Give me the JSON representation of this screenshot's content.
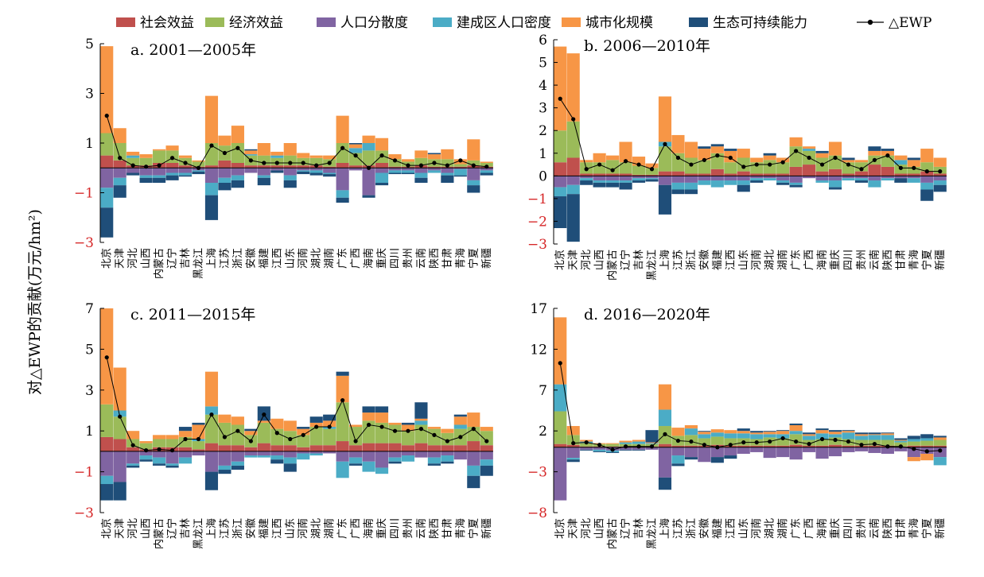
{
  "ylabel": "对△EWP的贡献(万元/hm²)",
  "legend": [
    {
      "key": "social",
      "name": "社会效益",
      "color": "#c0504d"
    },
    {
      "key": "economic",
      "name": "经济效益",
      "color": "#9bbb59"
    },
    {
      "key": "dispersion",
      "name": "人口分散度",
      "color": "#8064a2"
    },
    {
      "key": "density",
      "name": "建成区人口密度",
      "color": "#4bacc6"
    },
    {
      "key": "urbanization",
      "name": "城市化规模",
      "color": "#f79646"
    },
    {
      "key": "ecological",
      "name": "生态可持续能力",
      "color": "#1f4e79"
    },
    {
      "key": "ewp",
      "name": "△EWP",
      "color": "#000000"
    }
  ],
  "provinces": [
    "北京",
    "天津",
    "河北",
    "山西",
    "内蒙古",
    "辽宁",
    "吉林",
    "黑龙江",
    "上海",
    "江苏",
    "浙江",
    "安徽",
    "福建",
    "江西",
    "山东",
    "河南",
    "湖北",
    "湖南",
    "广东",
    "广西",
    "海南",
    "重庆",
    "四川",
    "贵州",
    "云南",
    "陕西",
    "甘肃",
    "青海",
    "宁夏",
    "新疆"
  ],
  "chart_data": [
    {
      "type": "bar",
      "title": "a. 2001—2005年",
      "ylim": [
        -3,
        5
      ],
      "yticks": [
        -3,
        -1,
        1,
        3,
        5
      ],
      "ytick_labels": [
        "−3",
        "−1",
        "1",
        "3",
        "5"
      ],
      "series": [
        {
          "key": "social",
          "values": [
            0.5,
            0.3,
            0.1,
            0.1,
            0.2,
            0.2,
            0.1,
            0.05,
            0.1,
            0.3,
            0.2,
            0.1,
            0.1,
            0.1,
            0.1,
            0.1,
            0.1,
            0.05,
            0.2,
            0.1,
            0.1,
            0.2,
            0.05,
            0.05,
            0.1,
            0.05,
            0.05,
            0.05,
            0.1,
            0.05
          ]
        },
        {
          "key": "economic",
          "values": [
            0.9,
            0.7,
            0.3,
            0.3,
            0.5,
            0.5,
            0.3,
            0.2,
            0.9,
            0.6,
            0.8,
            0.4,
            0.4,
            0.3,
            0.4,
            0.3,
            0.3,
            0.3,
            0.8,
            0.5,
            0.6,
            0.5,
            0.3,
            0.2,
            0.3,
            0.3,
            0.3,
            0.1,
            0.2,
            0.15
          ]
        },
        {
          "key": "dispersion",
          "values": [
            -0.8,
            -0.4,
            -0.2,
            -0.3,
            -0.3,
            -0.2,
            -0.2,
            -0.1,
            -0.6,
            -0.4,
            -0.3,
            -0.2,
            -0.3,
            -0.1,
            -0.3,
            -0.1,
            -0.1,
            -0.2,
            -0.9,
            -0.1,
            -1.1,
            -0.2,
            -0.1,
            -0.1,
            -0.2,
            -0.1,
            -0.2,
            -0.05,
            -0.5,
            -0.1
          ]
        },
        {
          "key": "density",
          "values": [
            -0.8,
            -0.3,
            0.1,
            -0.1,
            -0.1,
            -0.1,
            -0.1,
            -0.05,
            -0.5,
            -0.2,
            -0.2,
            0.05,
            -0.1,
            0.1,
            -0.2,
            -0.05,
            -0.1,
            -0.05,
            -0.3,
            0.2,
            0.3,
            -0.4,
            -0.1,
            -0.1,
            -0.2,
            -0.1,
            -0.1,
            -0.25,
            -0.2,
            -0.1
          ]
        },
        {
          "key": "urbanization",
          "values": [
            3.5,
            0.6,
            0.15,
            0.15,
            0.05,
            0.2,
            0.1,
            0.05,
            1.9,
            0.4,
            0.7,
            0.15,
            0.5,
            0.15,
            0.5,
            0.2,
            0.1,
            0.15,
            1.1,
            0.15,
            0.3,
            0.5,
            0.2,
            0.1,
            0.3,
            0.2,
            0.4,
            0.2,
            0.85,
            0.05
          ]
        },
        {
          "key": "ecological",
          "values": [
            -1.2,
            -0.5,
            -0.1,
            -0.2,
            -0.2,
            -0.2,
            -0.05,
            -0.1,
            -1.0,
            -0.3,
            -0.3,
            0.05,
            -0.3,
            -0.1,
            -0.3,
            -0.1,
            -0.1,
            -0.1,
            -0.2,
            0.05,
            -0.1,
            -0.1,
            -0.05,
            -0.05,
            -0.2,
            0.05,
            -0.3,
            -0.05,
            -0.3,
            -0.1
          ]
        }
      ],
      "ewp": [
        2.1,
        0.4,
        0.1,
        0.05,
        0.1,
        0.4,
        0.2,
        0.0,
        0.9,
        0.6,
        0.8,
        0.3,
        0.2,
        0.2,
        0.2,
        0.2,
        0.1,
        0.2,
        0.8,
        0.5,
        0.0,
        0.5,
        0.3,
        0.1,
        0.1,
        0.2,
        0.1,
        0.3,
        0.1,
        0.05
      ]
    },
    {
      "type": "bar",
      "title": "b. 2006—2010年",
      "ylim": [
        -3,
        6
      ],
      "yticks": [
        -3,
        -2,
        -1,
        0,
        1,
        2,
        3,
        4,
        5,
        6
      ],
      "ytick_labels": [
        "−3",
        "−2",
        "−1",
        "0",
        "1",
        "2",
        "3",
        "4",
        "5",
        "6"
      ],
      "series": [
        {
          "key": "social",
          "values": [
            0.6,
            0.8,
            0.1,
            0.1,
            0.1,
            0.1,
            0.05,
            0.05,
            0.2,
            0.2,
            0.1,
            0.1,
            0.3,
            0.1,
            0.2,
            0.1,
            0.1,
            0.1,
            0.4,
            0.5,
            0.2,
            0.3,
            0.1,
            0.2,
            0.5,
            0.4,
            0.1,
            0.1,
            0.2,
            0.1
          ]
        },
        {
          "key": "economic",
          "values": [
            1.4,
            1.6,
            0.5,
            0.5,
            0.6,
            0.5,
            0.4,
            0.3,
            1.1,
            0.8,
            0.7,
            0.6,
            0.7,
            0.5,
            0.6,
            0.5,
            0.6,
            0.5,
            0.9,
            0.6,
            0.6,
            0.6,
            0.5,
            0.4,
            0.4,
            0.5,
            0.4,
            0.3,
            0.4,
            0.3
          ]
        },
        {
          "key": "dispersion",
          "values": [
            -0.5,
            -0.4,
            -0.1,
            -0.2,
            -0.2,
            -0.2,
            -0.1,
            -0.1,
            -0.4,
            -0.3,
            -0.3,
            -0.2,
            -0.2,
            -0.2,
            -0.2,
            -0.1,
            -0.1,
            -0.2,
            -0.3,
            -0.1,
            -0.2,
            -0.2,
            -0.1,
            -0.1,
            -0.2,
            -0.1,
            -0.1,
            -0.1,
            -0.3,
            -0.2
          ]
        },
        {
          "key": "density",
          "values": [
            -0.4,
            -0.4,
            -0.1,
            -0.1,
            -0.1,
            -0.1,
            -0.1,
            -0.05,
            0.2,
            -0.3,
            -0.3,
            -0.2,
            -0.3,
            -0.2,
            -0.2,
            -0.1,
            -0.1,
            -0.1,
            -0.1,
            0.1,
            -0.1,
            -0.3,
            -0.1,
            -0.1,
            -0.3,
            -0.1,
            0.2,
            -0.2,
            -0.3,
            -0.2
          ]
        },
        {
          "key": "urbanization",
          "values": [
            3.7,
            3.0,
            0.1,
            0.4,
            0.2,
            0.9,
            0.4,
            0.2,
            2.0,
            0.8,
            0.7,
            0.5,
            0.3,
            0.5,
            0.4,
            0.2,
            0.2,
            0.2,
            0.4,
            0.1,
            0.2,
            0.6,
            0.1,
            0.1,
            0.2,
            0.2,
            0.2,
            0.3,
            0.6,
            0.4
          ]
        },
        {
          "key": "ecological",
          "values": [
            -1.4,
            -2.1,
            -0.2,
            -0.2,
            -0.2,
            -0.3,
            -0.1,
            -0.1,
            -1.3,
            -0.2,
            -0.2,
            0.1,
            0.1,
            0.1,
            -0.3,
            -0.1,
            0.1,
            -0.1,
            -0.1,
            0.0,
            0.1,
            -0.1,
            0.1,
            -0.1,
            0.2,
            0.1,
            -0.2,
            0.1,
            -0.5,
            -0.3
          ]
        }
      ],
      "ewp": [
        3.4,
        2.5,
        0.3,
        0.5,
        0.25,
        0.65,
        0.5,
        0.3,
        1.4,
        0.8,
        0.5,
        0.7,
        0.9,
        0.8,
        0.4,
        0.5,
        0.5,
        0.6,
        1.1,
        0.8,
        0.5,
        0.8,
        0.5,
        0.3,
        0.7,
        0.9,
        0.35,
        0.35,
        0.2,
        0.2
      ]
    },
    {
      "type": "bar",
      "title": "c. 2011—2015年",
      "ylim": [
        -3,
        7
      ],
      "yticks": [
        -3,
        -1,
        1,
        3,
        5,
        7
      ],
      "ytick_labels": [
        "−3",
        "−1",
        "1",
        "3",
        "5",
        "7"
      ],
      "series": [
        {
          "key": "social",
          "values": [
            0.7,
            0.6,
            0.2,
            0.1,
            0.2,
            0.2,
            0.2,
            0.1,
            0.4,
            0.3,
            0.3,
            0.2,
            0.4,
            0.3,
            0.3,
            0.2,
            0.3,
            0.3,
            0.5,
            0.3,
            0.4,
            0.4,
            0.4,
            0.3,
            0.4,
            0.3,
            0.3,
            0.3,
            0.5,
            0.3
          ]
        },
        {
          "key": "economic",
          "values": [
            1.6,
            1.1,
            0.4,
            0.3,
            0.4,
            0.4,
            0.5,
            0.4,
            1.4,
            1.1,
            1.0,
            0.6,
            1.0,
            0.8,
            0.7,
            0.6,
            0.9,
            0.8,
            1.9,
            0.9,
            1.1,
            1.0,
            0.9,
            0.7,
            0.9,
            0.8,
            0.6,
            0.8,
            0.7,
            0.7
          ]
        },
        {
          "key": "dispersion",
          "values": [
            -1.2,
            -1.5,
            -0.6,
            -0.2,
            -0.3,
            -0.6,
            -0.3,
            -0.2,
            -1.0,
            -0.7,
            -0.5,
            -0.2,
            -0.2,
            -0.2,
            -0.3,
            -0.1,
            -0.1,
            -0.1,
            -0.5,
            -0.3,
            -0.5,
            -0.8,
            -0.3,
            -0.2,
            -0.3,
            -0.3,
            -0.2,
            -0.4,
            -0.7,
            -0.4
          ]
        },
        {
          "key": "density",
          "values": [
            -0.4,
            0.3,
            -0.1,
            -0.2,
            -0.3,
            -0.1,
            -0.3,
            0.1,
            0.4,
            -0.2,
            -0.2,
            -0.1,
            -0.1,
            -0.2,
            -0.3,
            -0.3,
            -0.1,
            0.1,
            -0.8,
            -0.3,
            -0.5,
            -0.3,
            -0.2,
            -0.3,
            0.2,
            -0.3,
            -0.3,
            0.2,
            -0.5,
            -0.3
          ]
        },
        {
          "key": "urbanization",
          "values": [
            4.7,
            2.1,
            0.4,
            0.1,
            0.2,
            0.2,
            0.3,
            0.7,
            1.7,
            0.4,
            0.4,
            0.2,
            0.1,
            0.5,
            0.5,
            0.3,
            0.2,
            0.3,
            1.3,
            0.1,
            0.4,
            0.5,
            0.1,
            0.3,
            0.1,
            0.1,
            0.2,
            0.4,
            0.7,
            0.2
          ]
        },
        {
          "key": "ecological",
          "values": [
            -0.8,
            -0.9,
            -0.1,
            -0.1,
            -0.1,
            -0.1,
            0.2,
            0.1,
            -0.9,
            -0.2,
            -0.2,
            0.1,
            0.7,
            -0.2,
            -0.4,
            0.1,
            0.3,
            0.3,
            0.2,
            -0.1,
            0.3,
            0.3,
            -0.1,
            0.1,
            0.8,
            -0.1,
            -0.1,
            0.1,
            -0.6,
            -0.5
          ]
        }
      ],
      "ewp": [
        4.6,
        1.7,
        0.3,
        0.05,
        0.1,
        0.05,
        0.6,
        0.6,
        1.8,
        0.7,
        1.0,
        0.5,
        1.8,
        0.9,
        0.6,
        0.8,
        1.2,
        1.2,
        2.5,
        0.5,
        1.3,
        1.2,
        1.0,
        1.0,
        1.1,
        0.8,
        0.5,
        0.7,
        1.1,
        0.5
      ]
    },
    {
      "type": "bar",
      "title": "d. 2016—2020年",
      "ylim": [
        -8,
        17
      ],
      "yticks": [
        -8,
        -3,
        2,
        7,
        12,
        17
      ],
      "ytick_labels": [
        "−8",
        "−3",
        "2",
        "7",
        "12",
        "17"
      ],
      "series": [
        {
          "key": "social",
          "values": [
            0.4,
            0.3,
            0.1,
            0.1,
            0.1,
            0.1,
            0.1,
            0.1,
            0.4,
            0.2,
            0.2,
            0.2,
            0.3,
            0.2,
            0.2,
            0.2,
            0.2,
            0.2,
            0.3,
            0.2,
            0.2,
            0.3,
            0.2,
            0.2,
            0.2,
            0.2,
            0.1,
            0.2,
            0.2,
            0.2
          ]
        },
        {
          "key": "economic",
          "values": [
            4.0,
            1.2,
            0.4,
            0.3,
            0.3,
            0.3,
            0.3,
            0.3,
            2.2,
            1.2,
            1.3,
            0.9,
            1.0,
            0.9,
            0.9,
            0.8,
            1.0,
            0.9,
            1.3,
            0.7,
            0.8,
            0.9,
            0.8,
            0.7,
            0.7,
            0.7,
            0.5,
            0.5,
            0.6,
            0.7
          ]
        },
        {
          "key": "dispersion",
          "values": [
            -6.5,
            -1.3,
            -0.3,
            -0.3,
            -0.4,
            -0.3,
            -0.3,
            -0.3,
            -3.7,
            -1.0,
            -1.2,
            -1.8,
            -1.2,
            -1.0,
            -0.8,
            -0.6,
            -1.3,
            -1.2,
            -1.5,
            -0.6,
            -1.4,
            -1.1,
            -0.6,
            -0.5,
            -0.7,
            -0.8,
            -0.5,
            -1.2,
            -0.8,
            -1.2
          ]
        },
        {
          "key": "density",
          "values": [
            3.3,
            -0.2,
            0.2,
            -0.2,
            -0.2,
            0.2,
            0.3,
            0.1,
            2.0,
            -1.0,
            0.8,
            0.5,
            0.5,
            0.6,
            0.6,
            0.6,
            0.4,
            0.5,
            0.4,
            0.5,
            0.7,
            0.4,
            0.8,
            0.5,
            0.6,
            0.6,
            0.2,
            0.3,
            0.3,
            -1.0
          ]
        },
        {
          "key": "urbanization",
          "values": [
            8.2,
            1.1,
            0.2,
            0.1,
            0.1,
            0.2,
            0.2,
            0.1,
            3.1,
            1.0,
            0.4,
            0.3,
            0.4,
            0.4,
            0.3,
            0.2,
            0.3,
            0.4,
            0.7,
            0.2,
            0.4,
            0.3,
            0.2,
            0.2,
            0.1,
            0.2,
            0.1,
            -0.5,
            -0.8,
            0.3
          ]
        },
        {
          "key": "ecological",
          "values": [
            0.0,
            -0.3,
            -0.1,
            -0.1,
            -0.1,
            -0.1,
            -0.1,
            1.5,
            -1.5,
            -0.3,
            -0.3,
            0.1,
            -0.7,
            -0.4,
            0.3,
            0.2,
            0.1,
            0.1,
            0.2,
            0.2,
            0.2,
            0.2,
            0.1,
            0.2,
            0.2,
            0.1,
            0.2,
            0.4,
            0.5,
            0.2
          ]
        }
      ],
      "ewp": [
        10.3,
        0.5,
        0.6,
        0.3,
        -0.3,
        0.1,
        0.1,
        0.1,
        1.6,
        0.8,
        0.7,
        0.3,
        0.0,
        0.3,
        0.6,
        0.6,
        0.7,
        1.1,
        0.7,
        0.4,
        1.0,
        0.9,
        0.7,
        0.3,
        0.4,
        0.1,
        0.1,
        -0.2,
        -0.5,
        -0.4
      ]
    }
  ]
}
